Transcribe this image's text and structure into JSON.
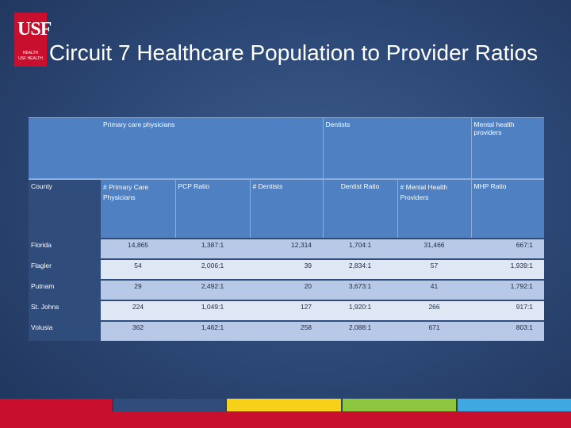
{
  "logo": {
    "mark": "USF",
    "sub": "HEALTH\nUSF HEALTH"
  },
  "title": "Circuit 7 Healthcare Population to Provider Ratios",
  "table": {
    "groups": {
      "pcp": "Primary care physicians",
      "dentists": "Dentists",
      "mental": "Mental health providers"
    },
    "columns": {
      "county": "County",
      "pcp_count": "# Primary Care Physicians",
      "pcp_ratio": "PCP Ratio",
      "dentists": "# Dentists",
      "dentist_ratio": "Dentist Ratio",
      "mh_count": "# Mental Health Providers",
      "mhp_ratio": "MHP Ratio"
    },
    "rows": [
      {
        "county": "Florida",
        "pcp": "14,865",
        "pcp_ratio": "1,387:1",
        "dentists": "12,314",
        "dentist_ratio": "1,704:1",
        "mh": "31,466",
        "mhp_ratio": "667:1"
      },
      {
        "county": "Flagler",
        "pcp": "54",
        "pcp_ratio": "2,006:1",
        "dentists": "39",
        "dentist_ratio": "2,834:1",
        "mh": "57",
        "mhp_ratio": "1,939:1"
      },
      {
        "county": "Putnam",
        "pcp": "29",
        "pcp_ratio": "2,492:1",
        "dentists": "20",
        "dentist_ratio": "3,673:1",
        "mh": "41",
        "mhp_ratio": "1,792:1"
      },
      {
        "county": "St. Johns",
        "pcp": "224",
        "pcp_ratio": "1,049:1",
        "dentists": "127",
        "dentist_ratio": "1,920:1",
        "mh": "266",
        "mhp_ratio": "917:1"
      },
      {
        "county": "Volusia",
        "pcp": "362",
        "pcp_ratio": "1,462:1",
        "dentists": "258",
        "dentist_ratio": "2,088:1",
        "mh": "671",
        "mhp_ratio": "803:1"
      }
    ]
  },
  "colors": {
    "brand_red": "#c8102e",
    "stripe_colors": [
      "#c8102e",
      "#2f4c7a",
      "#f7d117",
      "#8dc63f",
      "#3da9e0"
    ]
  }
}
